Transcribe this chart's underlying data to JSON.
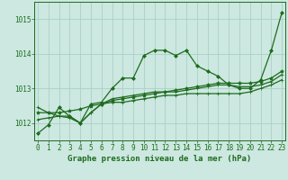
{
  "title": "Graphe pression niveau de la mer (hPa)",
  "series": [
    [
      1011.7,
      1011.95,
      1012.45,
      1012.2,
      1012.0,
      1012.55,
      1012.6,
      1013.0,
      1013.3,
      1013.3,
      1013.95,
      1014.1,
      1014.1,
      1013.95,
      1014.1,
      1013.65,
      1013.5,
      1013.35,
      1013.1,
      1013.0,
      1013.0,
      1013.25,
      1014.1,
      1015.2
    ],
    [
      1012.3,
      1012.3,
      1012.3,
      1012.35,
      1012.4,
      1012.5,
      1012.55,
      1012.65,
      1012.7,
      1012.75,
      1012.8,
      1012.85,
      1012.9,
      1012.95,
      1013.0,
      1013.05,
      1013.1,
      1013.15,
      1013.15,
      1013.15,
      1013.15,
      1013.2,
      1013.3,
      1013.5
    ],
    [
      1012.1,
      1012.15,
      1012.2,
      1012.2,
      1012.0,
      1012.3,
      1012.55,
      1012.6,
      1012.6,
      1012.65,
      1012.7,
      1012.75,
      1012.8,
      1012.8,
      1012.85,
      1012.85,
      1012.85,
      1012.85,
      1012.85,
      1012.85,
      1012.9,
      1013.0,
      1013.1,
      1013.25
    ],
    [
      1012.45,
      1012.3,
      1012.2,
      1012.15,
      1012.0,
      1012.3,
      1012.55,
      1012.7,
      1012.75,
      1012.8,
      1012.85,
      1012.9,
      1012.9,
      1012.9,
      1012.95,
      1013.0,
      1013.05,
      1013.1,
      1013.1,
      1013.05,
      1013.05,
      1013.1,
      1013.2,
      1013.4
    ]
  ],
  "x_values": [
    0,
    1,
    2,
    3,
    4,
    5,
    6,
    7,
    8,
    9,
    10,
    11,
    12,
    13,
    14,
    15,
    16,
    17,
    18,
    19,
    20,
    21,
    22,
    23
  ],
  "ylim": [
    1011.5,
    1015.5
  ],
  "yticks": [
    1012,
    1013,
    1014,
    1015
  ],
  "xticks": [
    0,
    1,
    2,
    3,
    4,
    5,
    6,
    7,
    8,
    9,
    10,
    11,
    12,
    13,
    14,
    15,
    16,
    17,
    18,
    19,
    20,
    21,
    22,
    23
  ],
  "line_color": "#1e6b1e",
  "marker_color": "#1e6b1e",
  "bg_color": "#cce8e0",
  "grid_color": "#aacfc7",
  "axis_color": "#1e6b1e",
  "title_color": "#1e6b1e",
  "tick_label_color": "#1e6b1e",
  "title_fontsize": 6.5,
  "tick_fontsize": 5.5,
  "marker": "D",
  "marker_size": 2.0,
  "linewidth": 0.9
}
